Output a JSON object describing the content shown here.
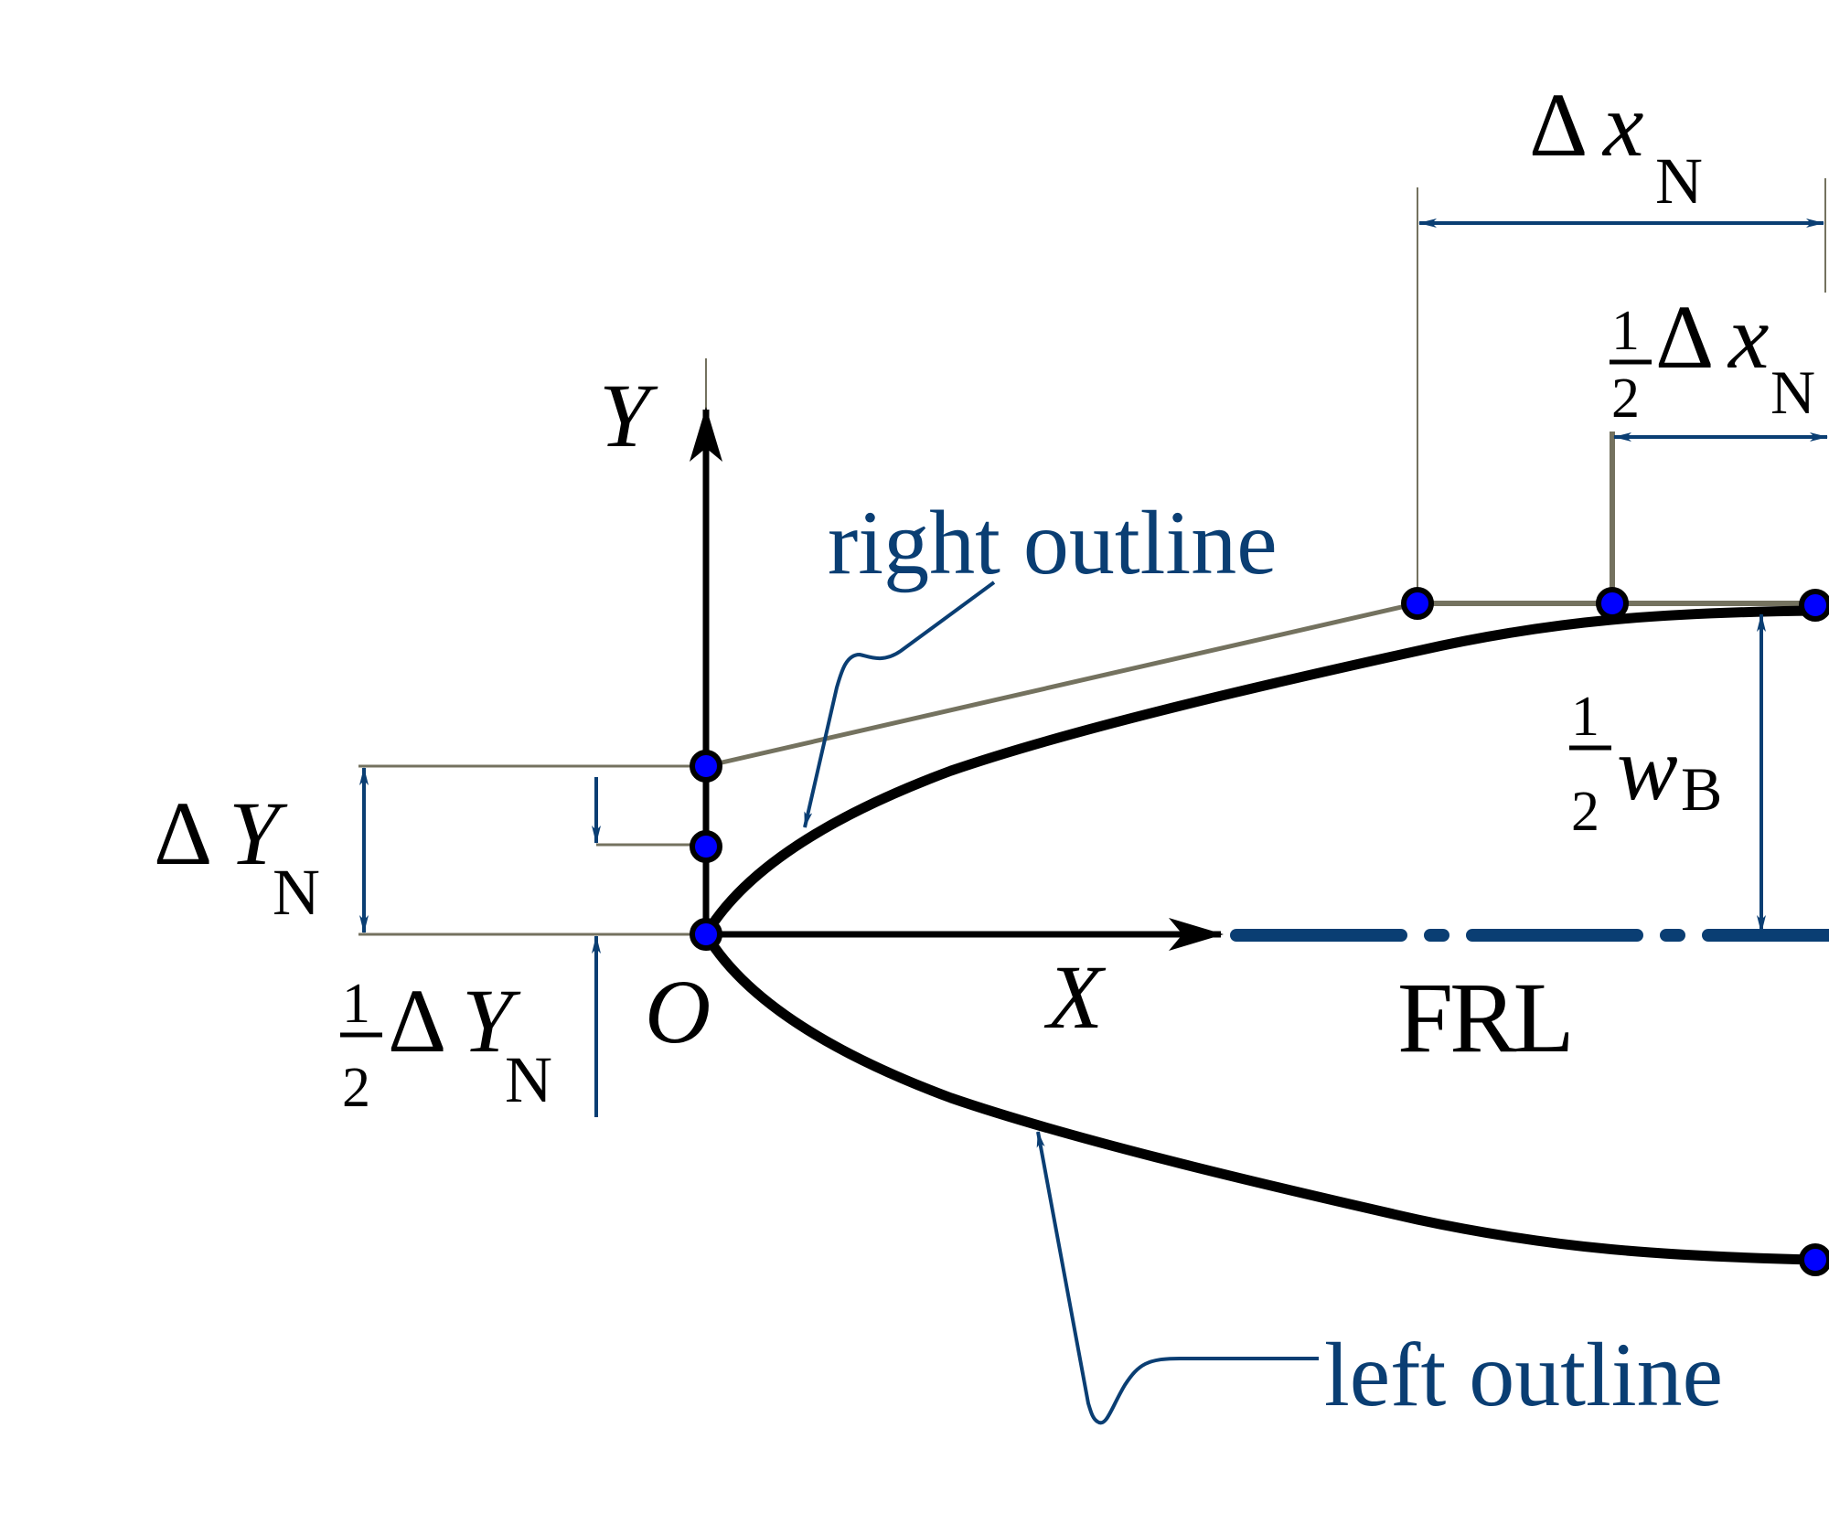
{
  "colors": {
    "outline": "#000000",
    "annotation_blue": "#0a3e73",
    "construction_gray": "#74725f",
    "node_fill": "#0000ff",
    "background": "#ffffff"
  },
  "labels": {
    "axis_y": "Y",
    "axis_x": "X",
    "origin": "O",
    "frl": "FRL",
    "right_outline": "right outline",
    "left_outline": "left outline",
    "delta": "Δ",
    "x_var": "x",
    "y_var": "Y",
    "w_var": "w",
    "sub_n": "N",
    "sub_b": "B",
    "half_num": "1",
    "half_den": "2"
  }
}
